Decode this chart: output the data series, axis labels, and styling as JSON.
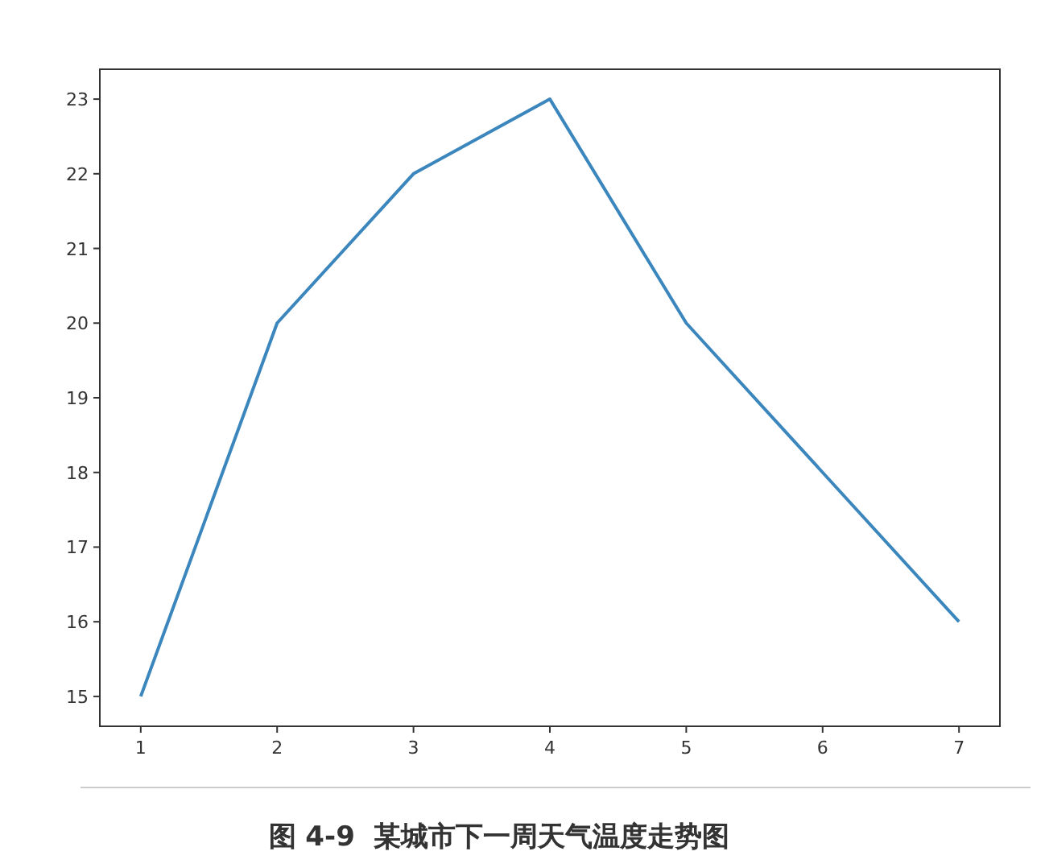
{
  "chart_data": {
    "type": "line",
    "x": [
      1,
      2,
      3,
      4,
      5,
      6,
      7
    ],
    "series": [
      {
        "color": "#3a86bd",
        "values": [
          15,
          20,
          22,
          23,
          20,
          18,
          16
        ]
      }
    ],
    "xlim": [
      0.7,
      7.3
    ],
    "ylim": [
      14.6,
      23.4
    ],
    "xticks": [
      1,
      2,
      3,
      4,
      5,
      6,
      7
    ],
    "yticks": [
      15,
      16,
      17,
      18,
      19,
      20,
      21,
      22,
      23
    ],
    "grid": false,
    "marker": "none",
    "line_style": "solid",
    "annotations": [
      "图 4-9  某城市下一周天气温度走势图"
    ]
  }
}
